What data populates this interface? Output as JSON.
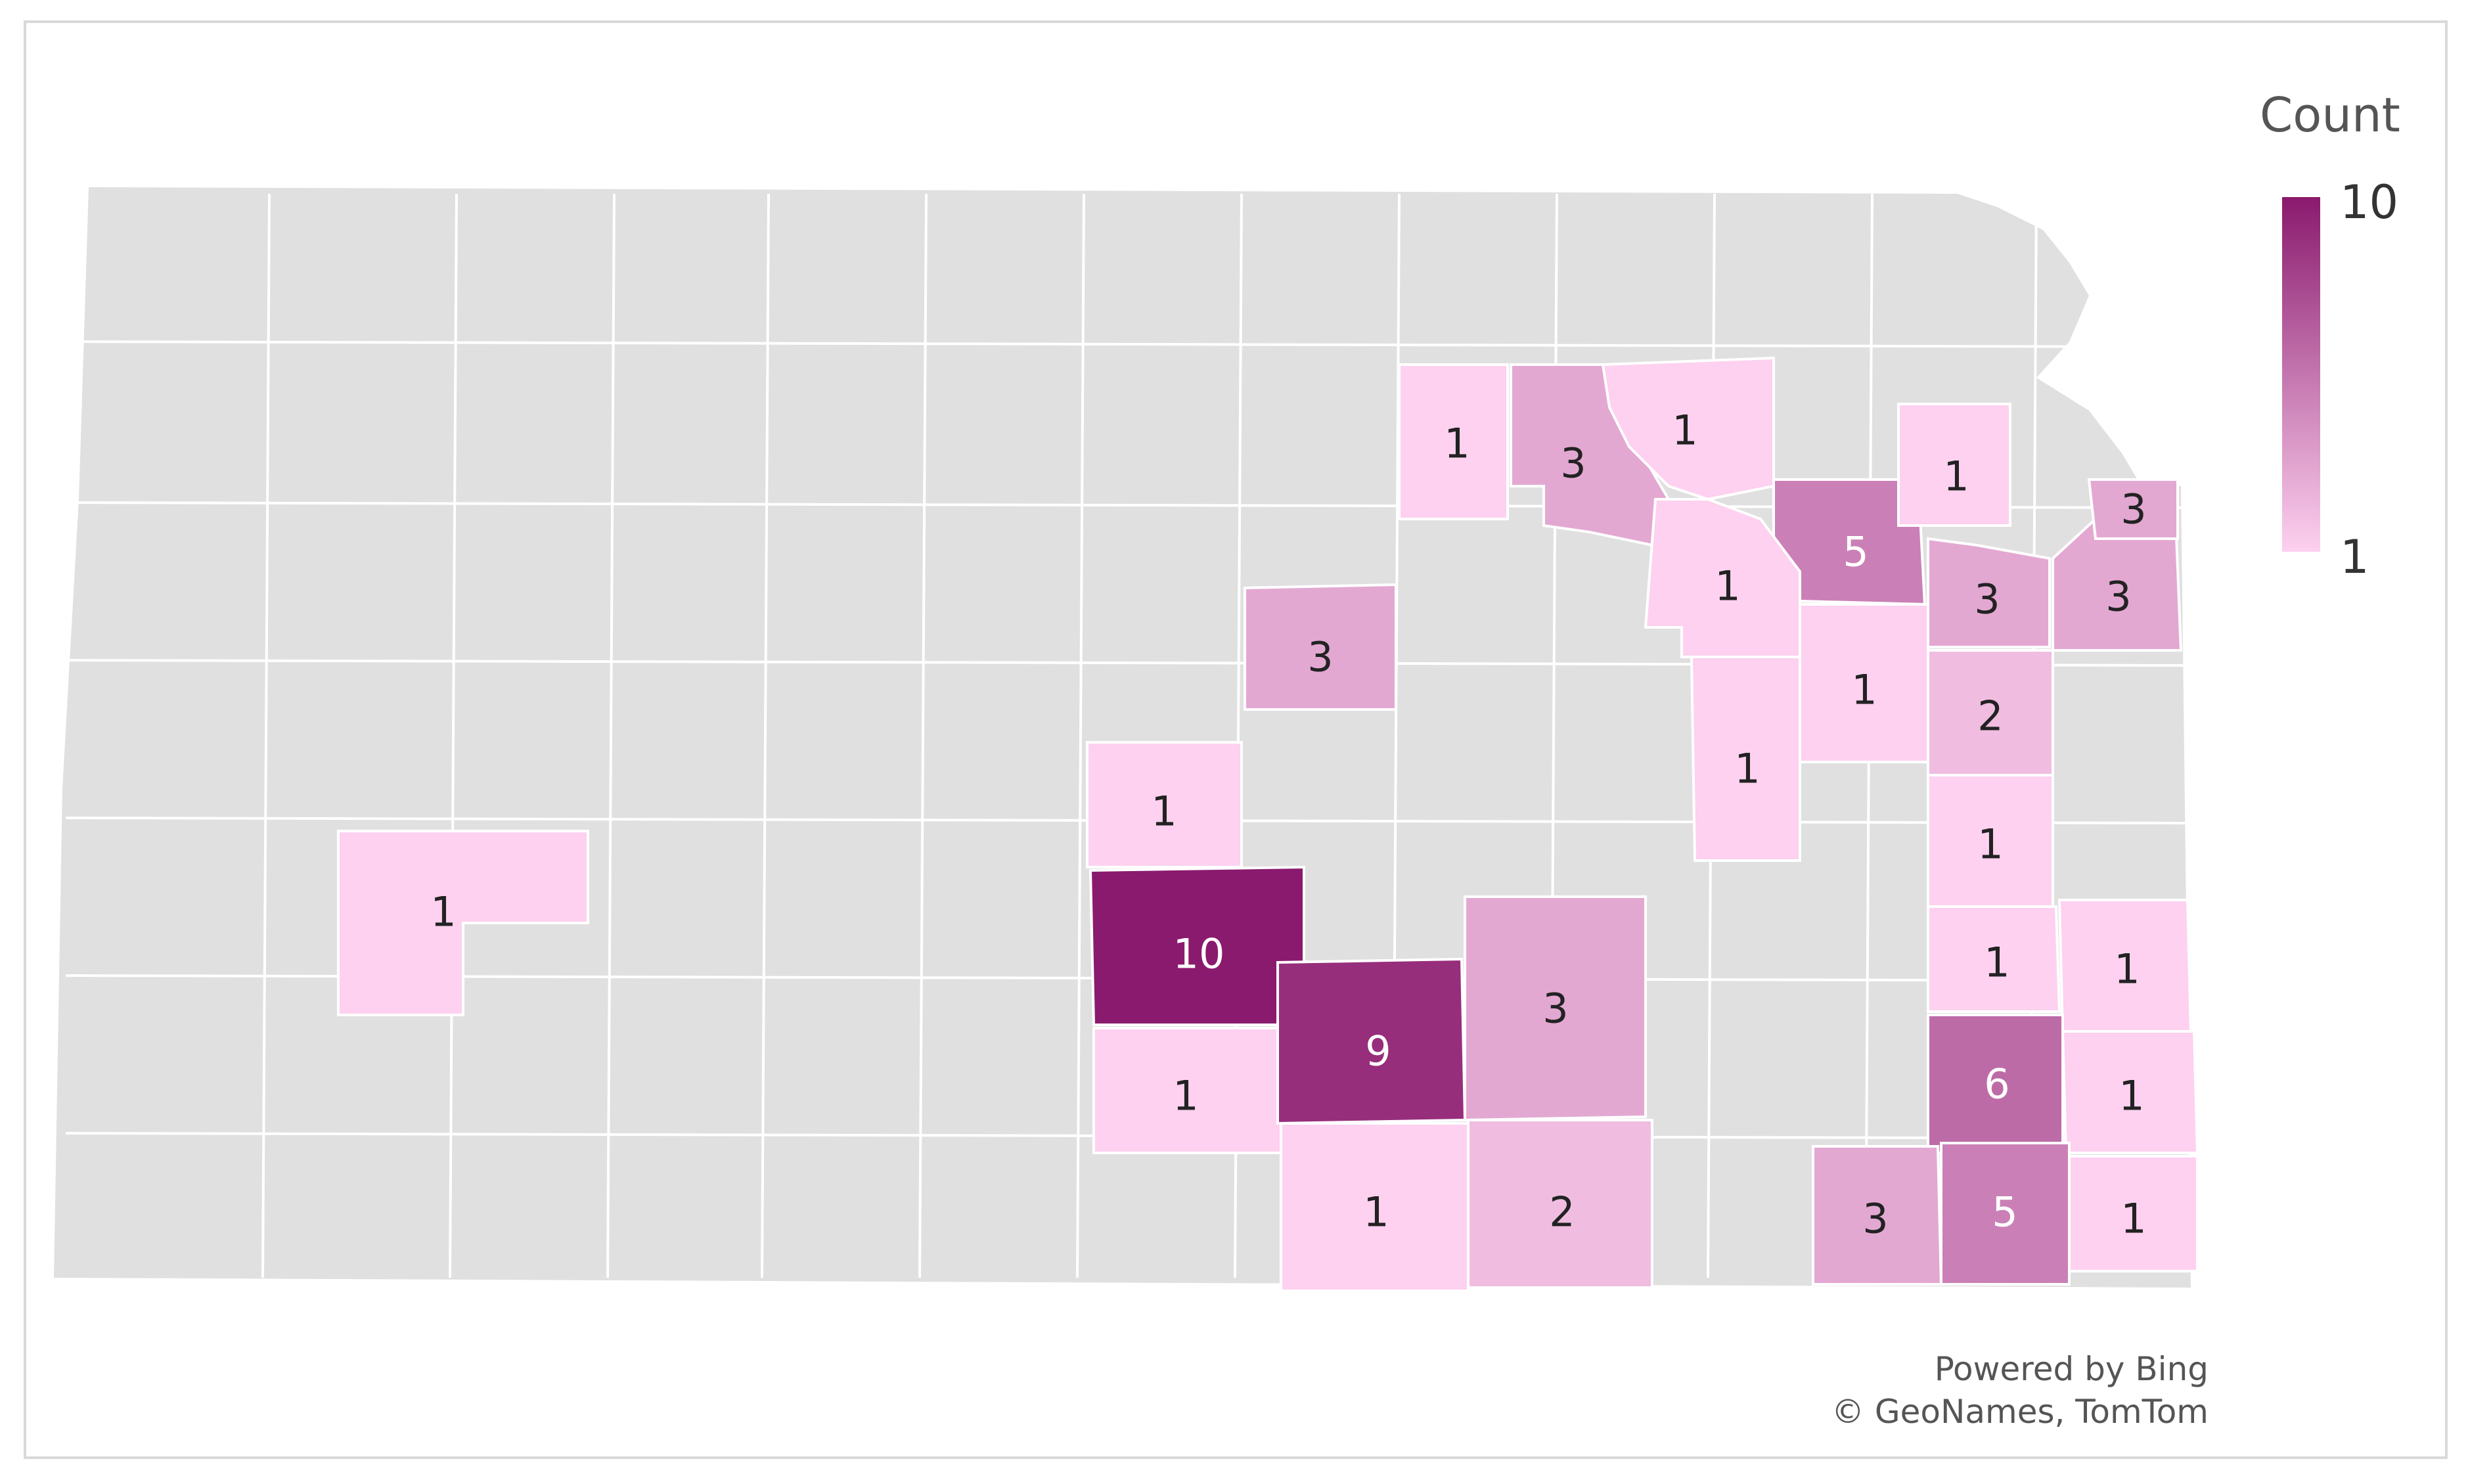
{
  "legend": {
    "title": "Count",
    "max_label": "10",
    "min_label": "1",
    "color_max": "#8a1a6e",
    "color_min": "#fdd1ef"
  },
  "attribution": {
    "line1": "Powered by Bing",
    "line2": "© GeoNames, TomTom"
  },
  "colors": {
    "no_data": "#e0e0e0",
    "borders": "#ffffff"
  },
  "counties": [
    {
      "count": 1
    },
    {
      "count": 3
    },
    {
      "count": 1
    },
    {
      "count": 3
    },
    {
      "count": 5
    },
    {
      "count": 1
    },
    {
      "count": 1
    },
    {
      "count": 3
    },
    {
      "count": 3
    },
    {
      "count": 3
    },
    {
      "count": 1
    },
    {
      "count": 2
    },
    {
      "count": 1
    },
    {
      "count": 1
    },
    {
      "count": 1
    },
    {
      "count": 10
    },
    {
      "count": 1
    },
    {
      "count": 9
    },
    {
      "count": 3
    },
    {
      "count": 1
    },
    {
      "count": 1
    },
    {
      "count": 1
    },
    {
      "count": 1
    },
    {
      "count": 2
    },
    {
      "count": 6
    },
    {
      "count": 1
    },
    {
      "count": 3
    },
    {
      "count": 5
    },
    {
      "count": 1
    }
  ]
}
